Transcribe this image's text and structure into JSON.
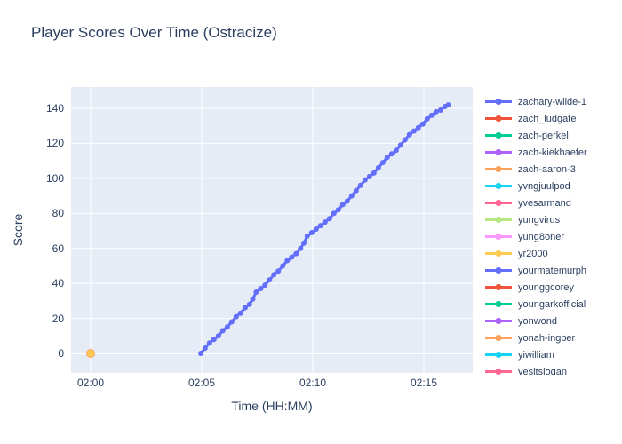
{
  "chart_data": {
    "type": "line",
    "title": "Player Scores Over Time (Ostracize)",
    "xlabel": "Time (HH:MM)",
    "ylabel": "Score",
    "x_unit": "minutes after 02:00",
    "xlim": [
      -0.9,
      17.3
    ],
    "ylim": [
      -11,
      152
    ],
    "grid": true,
    "legend_position": "right",
    "plot_bg": "#E5ECF6",
    "grid_color": "#FFFFFF",
    "text_color": "#2a3f5f",
    "x_ticks": [
      {
        "t": 0,
        "label": "02:00"
      },
      {
        "t": 5,
        "label": "02:05"
      },
      {
        "t": 10,
        "label": "02:10"
      },
      {
        "t": 15,
        "label": "02:15"
      }
    ],
    "y_ticks": [
      0,
      20,
      40,
      60,
      80,
      100,
      120,
      140
    ],
    "series": [
      {
        "name": "zachary-wilde-1",
        "color": "#636EFA",
        "points": [
          [
            4.96,
            0
          ],
          [
            5.15,
            3
          ],
          [
            5.35,
            6
          ],
          [
            5.55,
            8
          ],
          [
            5.75,
            10
          ],
          [
            5.95,
            13
          ],
          [
            6.15,
            15
          ],
          [
            6.35,
            18
          ],
          [
            6.55,
            21
          ],
          [
            6.75,
            23
          ],
          [
            6.95,
            26
          ],
          [
            7.15,
            28
          ],
          [
            7.3,
            31
          ],
          [
            7.45,
            35
          ],
          [
            7.65,
            37
          ],
          [
            7.85,
            39
          ],
          [
            8.05,
            42
          ],
          [
            8.25,
            45
          ],
          [
            8.45,
            47
          ],
          [
            8.65,
            50
          ],
          [
            8.85,
            53
          ],
          [
            9.05,
            55
          ],
          [
            9.25,
            57
          ],
          [
            9.45,
            60
          ],
          [
            9.6,
            63
          ],
          [
            9.75,
            67
          ],
          [
            9.95,
            69
          ],
          [
            10.15,
            71
          ],
          [
            10.35,
            73
          ],
          [
            10.55,
            75
          ],
          [
            10.75,
            77
          ],
          [
            10.95,
            80
          ],
          [
            11.15,
            82
          ],
          [
            11.35,
            85
          ],
          [
            11.55,
            87
          ],
          [
            11.75,
            90
          ],
          [
            11.95,
            93
          ],
          [
            12.15,
            96
          ],
          [
            12.35,
            99
          ],
          [
            12.55,
            101
          ],
          [
            12.75,
            103
          ],
          [
            12.95,
            106
          ],
          [
            13.15,
            109
          ],
          [
            13.35,
            112
          ],
          [
            13.55,
            114
          ],
          [
            13.75,
            116
          ],
          [
            13.95,
            119
          ],
          [
            14.15,
            122
          ],
          [
            14.35,
            125
          ],
          [
            14.55,
            127
          ],
          [
            14.75,
            129
          ],
          [
            14.95,
            131
          ],
          [
            15.15,
            134
          ],
          [
            15.35,
            136
          ],
          [
            15.55,
            138
          ],
          [
            15.75,
            139
          ],
          [
            15.95,
            141
          ],
          [
            16.1,
            142
          ]
        ]
      },
      {
        "name": "zach_ludgate",
        "color": "#EF553B",
        "points": []
      },
      {
        "name": "zach-perkel",
        "color": "#00CC96",
        "points": []
      },
      {
        "name": "zach-kiekhaefer",
        "color": "#AB63FA",
        "points": []
      },
      {
        "name": "zach-aaron-3",
        "color": "#FFA15A",
        "points": [
          [
            0,
            0
          ]
        ]
      },
      {
        "name": "yvngjuulpod",
        "color": "#19D3F3",
        "points": []
      },
      {
        "name": "yvesarmand",
        "color": "#FF6692",
        "points": []
      },
      {
        "name": "yungvirus",
        "color": "#B6E880",
        "points": []
      },
      {
        "name": "yung8oner",
        "color": "#FF97FF",
        "points": []
      },
      {
        "name": "yr2000",
        "color": "#FECB52",
        "points": [
          [
            0,
            0
          ]
        ]
      },
      {
        "name": "yourmatemurph",
        "color": "#636EFA",
        "points": []
      },
      {
        "name": "younggcorey",
        "color": "#EF553B",
        "points": []
      },
      {
        "name": "youngarkofficial",
        "color": "#00CC96",
        "points": []
      },
      {
        "name": "yonwond",
        "color": "#AB63FA",
        "points": []
      },
      {
        "name": "yonah-ingber",
        "color": "#FFA15A",
        "points": []
      },
      {
        "name": "yiwilliam",
        "color": "#19D3F3",
        "points": []
      },
      {
        "name": "yesitslogan",
        "color": "#FF6692",
        "points": []
      }
    ]
  }
}
